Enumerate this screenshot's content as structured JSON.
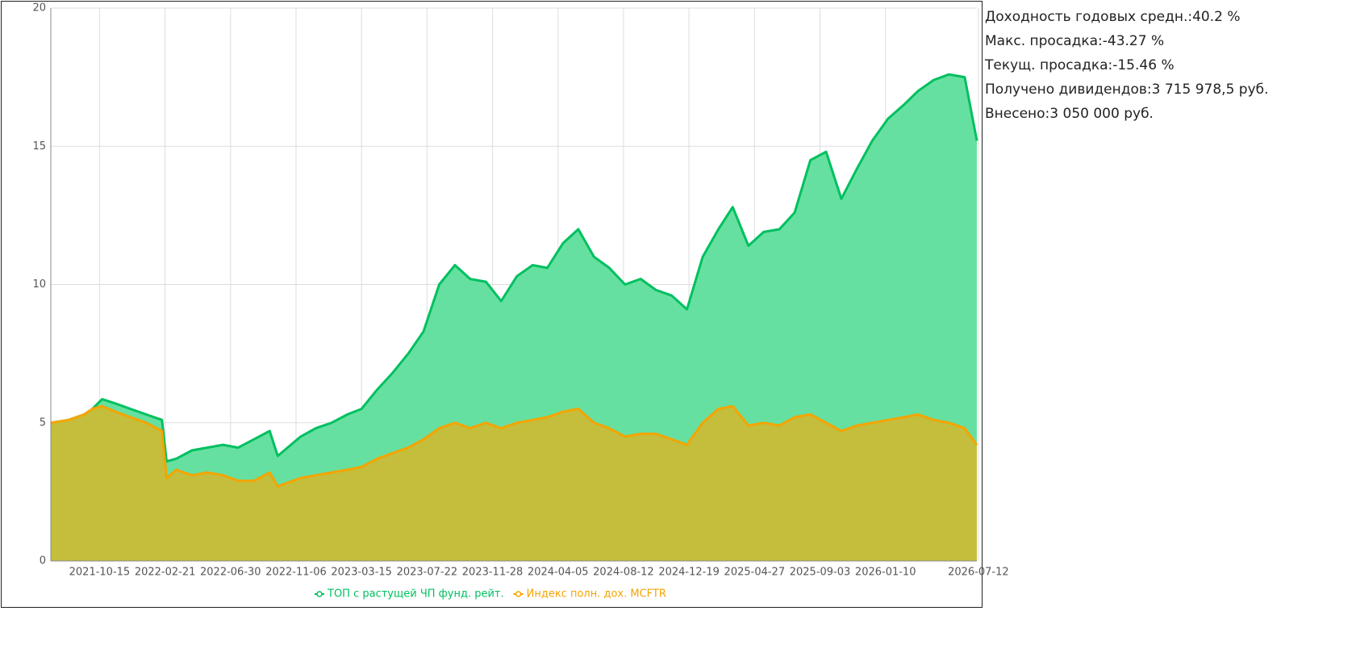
{
  "chart_data": {
    "type": "area",
    "x": [
      "2021-07-11",
      "2021-08-15",
      "2021-09-15",
      "2021-10-01",
      "2021-10-20",
      "2021-11-15",
      "2021-12-15",
      "2022-01-15",
      "2022-02-15",
      "2022-02-24",
      "2022-03-15",
      "2022-04-15",
      "2022-05-15",
      "2022-06-15",
      "2022-07-15",
      "2022-08-15",
      "2022-09-15",
      "2022-10-01",
      "2022-11-15",
      "2022-12-15",
      "2023-01-15",
      "2023-02-15",
      "2023-03-15",
      "2023-04-15",
      "2023-05-15",
      "2023-06-15",
      "2023-07-15",
      "2023-08-15",
      "2023-09-15",
      "2023-10-15",
      "2023-11-15",
      "2023-12-15",
      "2024-01-15",
      "2024-02-15",
      "2024-03-15",
      "2024-04-15",
      "2024-05-15",
      "2024-06-15",
      "2024-07-15",
      "2024-08-15",
      "2024-09-15",
      "2024-10-15",
      "2024-11-15",
      "2024-12-15",
      "2025-01-15",
      "2025-02-15",
      "2025-03-15",
      "2025-04-15",
      "2025-05-15",
      "2025-06-15",
      "2025-07-15",
      "2025-08-15",
      "2025-09-15",
      "2025-10-15",
      "2025-11-15",
      "2025-12-15",
      "2026-01-15",
      "2026-02-15",
      "2026-03-15",
      "2026-04-15",
      "2026-05-15",
      "2026-06-15",
      "2026-07-09"
    ],
    "series": [
      {
        "name": "ТОП с растущей ЧП фунд. рейт.",
        "color": "#00c060",
        "fill": "#66e0a0",
        "values": [
          5.0,
          5.1,
          5.3,
          5.5,
          5.85,
          5.7,
          5.5,
          5.3,
          5.1,
          3.6,
          3.7,
          4.0,
          4.1,
          4.2,
          4.1,
          4.4,
          4.7,
          3.8,
          4.5,
          4.8,
          5.0,
          5.3,
          5.5,
          6.2,
          6.8,
          7.5,
          8.3,
          10.0,
          10.7,
          10.2,
          10.1,
          9.4,
          10.3,
          10.7,
          10.6,
          11.5,
          12.0,
          11.0,
          10.6,
          10.0,
          10.2,
          9.8,
          9.6,
          9.1,
          11.0,
          12.0,
          12.8,
          11.4,
          11.9,
          12.0,
          12.6,
          14.5,
          14.8,
          13.1,
          14.2,
          15.2,
          16.0,
          16.5,
          17.0,
          17.4,
          17.6,
          17.5,
          15.2
        ]
      },
      {
        "name": "Индекс полн. дох. MCFTR",
        "color": "#f5a400",
        "fill": "#c4be3c",
        "values": [
          5.0,
          5.1,
          5.3,
          5.5,
          5.6,
          5.4,
          5.2,
          5.0,
          4.7,
          3.0,
          3.3,
          3.1,
          3.2,
          3.1,
          2.9,
          2.9,
          3.2,
          2.7,
          3.0,
          3.1,
          3.2,
          3.3,
          3.4,
          3.7,
          3.9,
          4.1,
          4.4,
          4.8,
          5.0,
          4.8,
          5.0,
          4.8,
          5.0,
          5.1,
          5.2,
          5.4,
          5.5,
          5.0,
          4.8,
          4.5,
          4.6,
          4.6,
          4.4,
          4.2,
          5.0,
          5.5,
          5.6,
          4.9,
          5.0,
          4.9,
          5.2,
          5.3,
          5.0,
          4.7,
          4.9,
          5.0,
          5.1,
          5.2,
          5.3,
          5.1,
          5.0,
          4.8,
          4.2
        ]
      }
    ],
    "xlim": [
      "2021-07-11",
      "2026-07-09"
    ],
    "xticks": [
      "2021-10-15",
      "2022-02-21",
      "2022-06-30",
      "2022-11-06",
      "2023-03-15",
      "2023-07-22",
      "2023-11-28",
      "2024-04-05",
      "2024-08-12",
      "2024-12-19",
      "2025-04-27",
      "2025-09-03",
      "2026-01-10",
      "2026-07-12"
    ],
    "ylim": [
      0,
      20
    ],
    "yticks": [
      0,
      5,
      10,
      15,
      20
    ],
    "grid": true,
    "legend": "bottom"
  },
  "stats": [
    {
      "label": "Доходность годовых средн.:",
      "value": "40.2 %"
    },
    {
      "label": "Макс. просадка:",
      "value": "-43.27 %"
    },
    {
      "label": "Текущ. просадка:",
      "value": "-15.46 %"
    },
    {
      "label": "Получено дивидендов:",
      "value": "3 715 978,5 руб."
    },
    {
      "label": "Внесено:",
      "value": "3 050 000 руб."
    }
  ]
}
